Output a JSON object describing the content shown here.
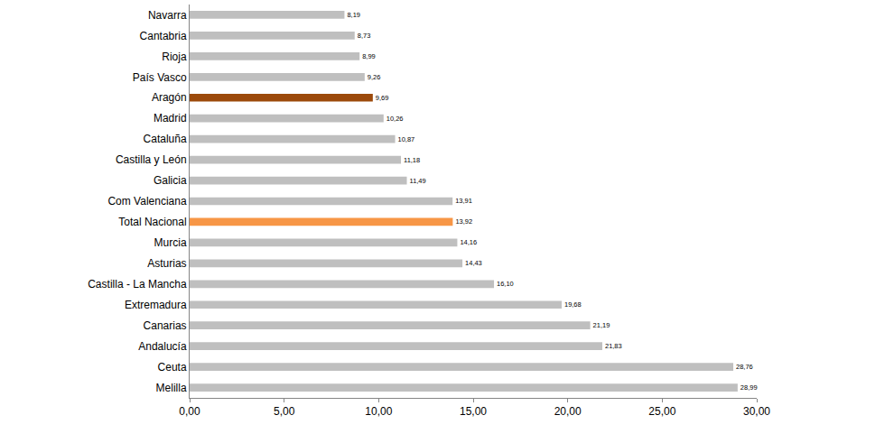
{
  "chart_data": {
    "type": "bar",
    "orientation": "horizontal",
    "categories": [
      "Navarra",
      "Cantabria",
      "Rioja",
      "País Vasco",
      "Aragón",
      "Madrid",
      "Cataluña",
      "Castilla y León",
      "Galicia",
      "Com Valenciana",
      "Total Nacional",
      "Murcia",
      "Asturias",
      "Castilla - La Mancha",
      "Extremadura",
      "Canarias",
      "Andalucía",
      "Ceuta",
      "Melilla"
    ],
    "values": [
      8.19,
      8.73,
      8.99,
      9.26,
      9.69,
      10.26,
      10.87,
      11.18,
      11.49,
      13.91,
      13.92,
      14.16,
      14.43,
      16.1,
      19.68,
      21.19,
      21.83,
      28.76,
      28.99
    ],
    "value_labels": [
      "8,19",
      "8,73",
      "8,99",
      "9,26",
      "9,69",
      "10,26",
      "10,87",
      "11,18",
      "11,49",
      "13,91",
      "13,92",
      "14,16",
      "14,43",
      "16,10",
      "19,68",
      "21,19",
      "21,83",
      "28,76",
      "28,99"
    ],
    "colors": [
      "#bfbfbf",
      "#bfbfbf",
      "#bfbfbf",
      "#bfbfbf",
      "#9c4a0b",
      "#bfbfbf",
      "#bfbfbf",
      "#bfbfbf",
      "#bfbfbf",
      "#bfbfbf",
      "#f79646",
      "#bfbfbf",
      "#bfbfbf",
      "#bfbfbf",
      "#bfbfbf",
      "#bfbfbf",
      "#bfbfbf",
      "#bfbfbf",
      "#bfbfbf"
    ],
    "xlim": [
      0,
      30
    ],
    "xticks": [
      {
        "value": 0,
        "label": "0,00"
      },
      {
        "value": 5,
        "label": "5,00"
      },
      {
        "value": 10,
        "label": "10,00"
      },
      {
        "value": 15,
        "label": "15,00"
      },
      {
        "value": 20,
        "label": "20,00"
      },
      {
        "value": 25,
        "label": "25,00"
      },
      {
        "value": 30,
        "label": "30,00"
      }
    ],
    "grid": false,
    "data_labels": true
  }
}
